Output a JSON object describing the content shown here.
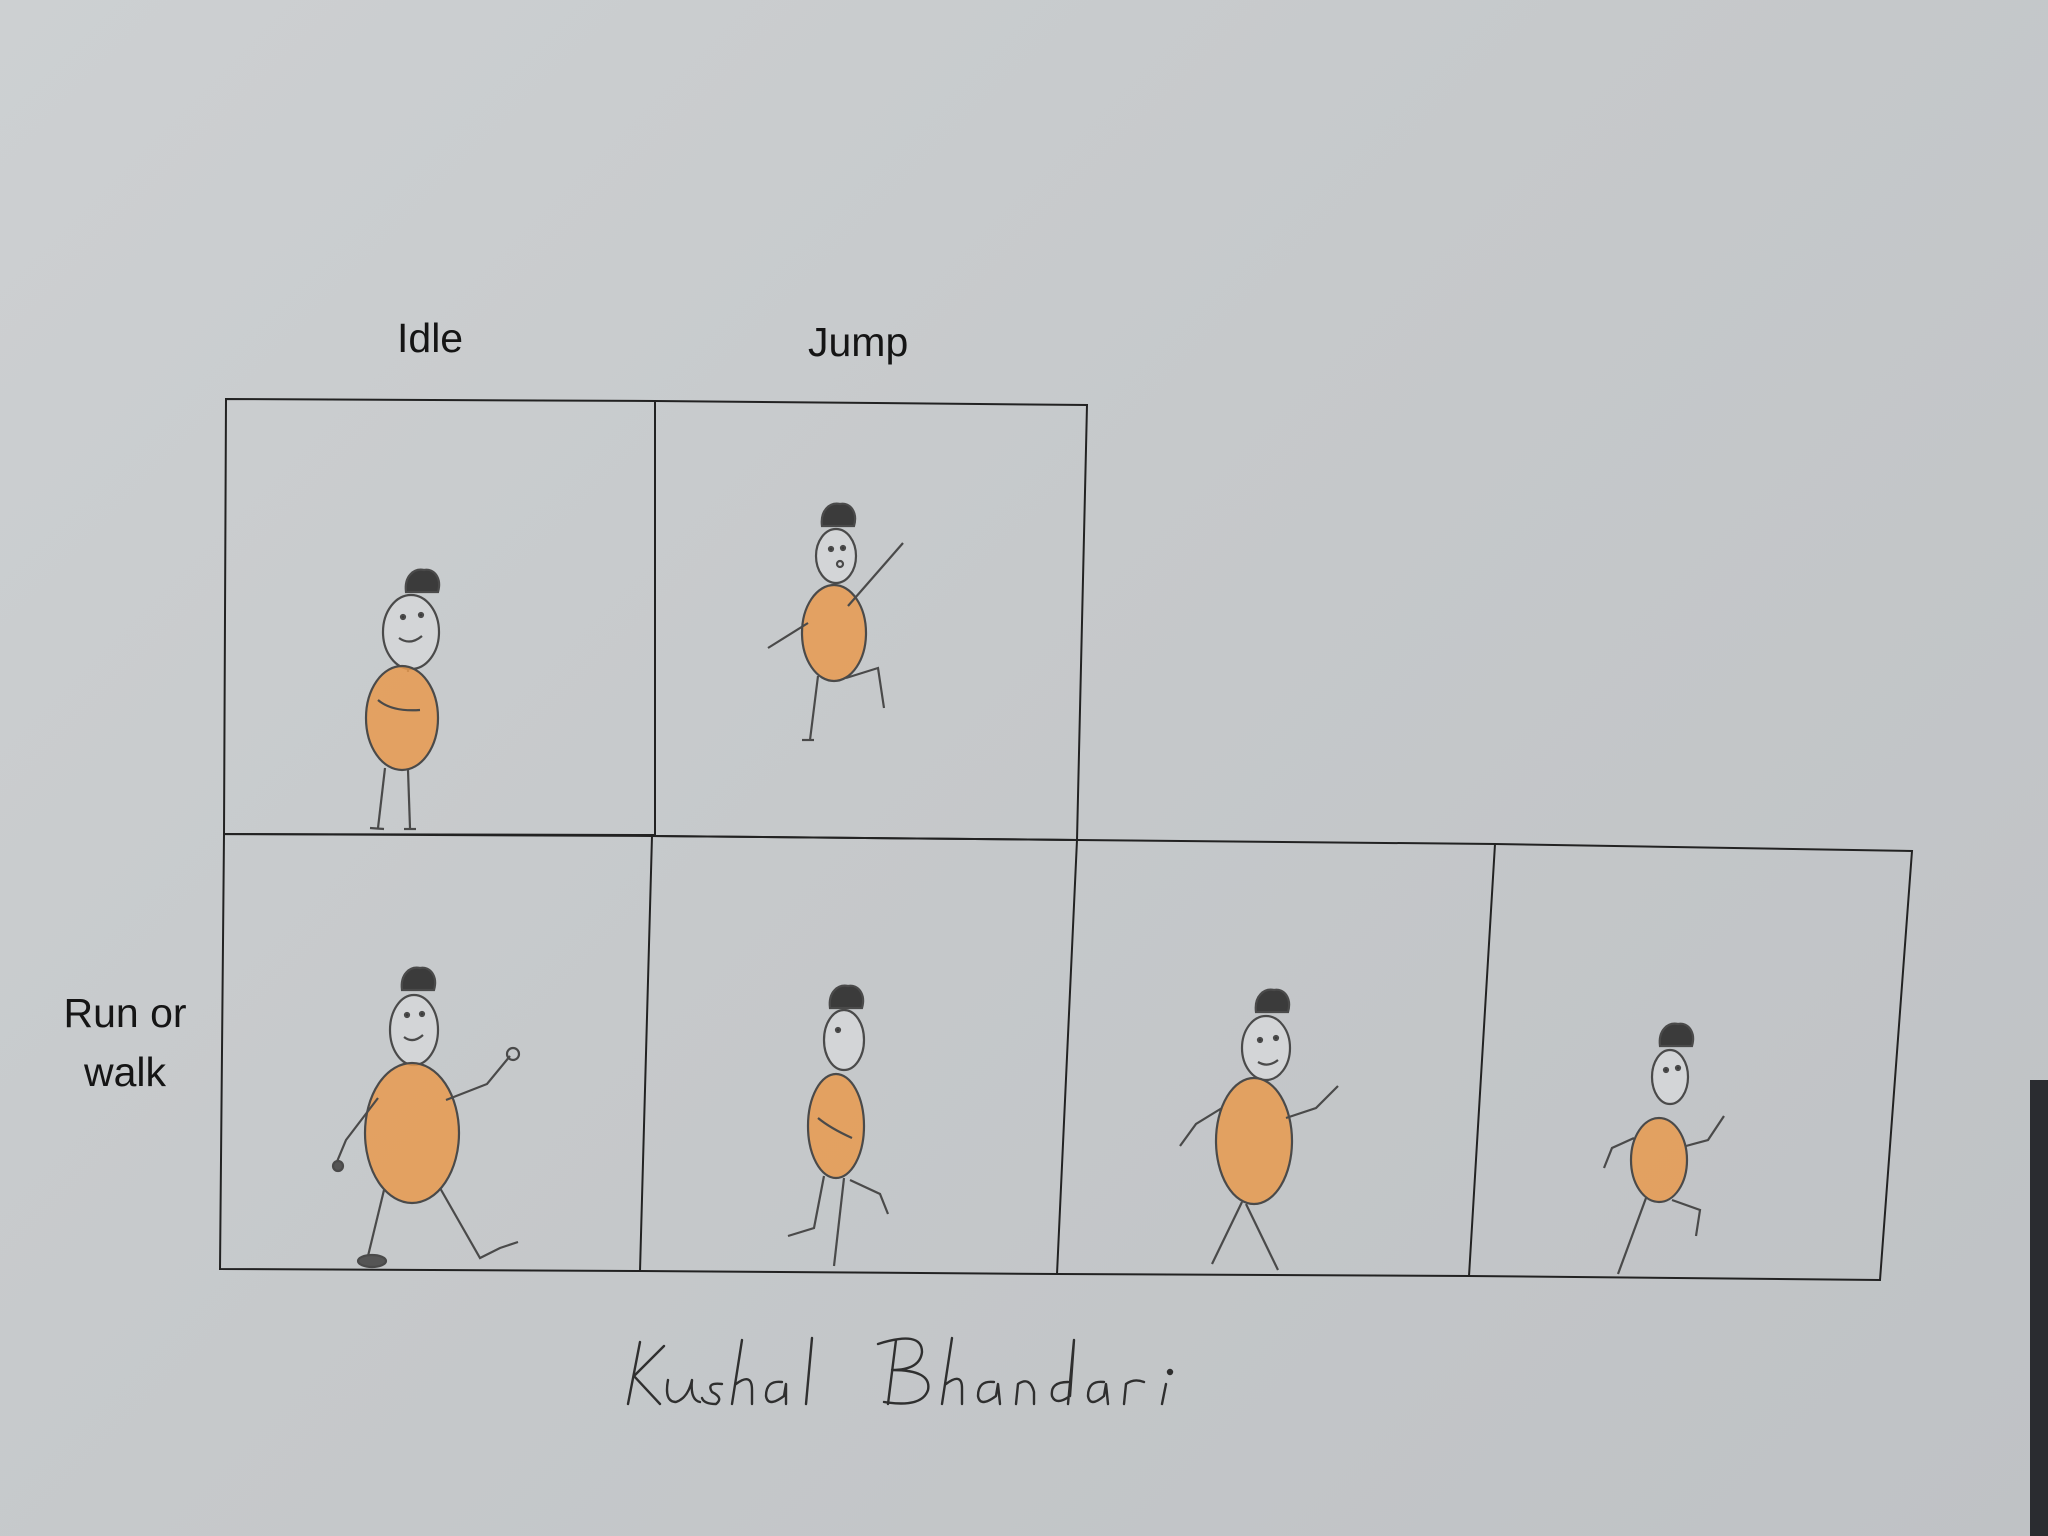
{
  "labels": {
    "idle": "Idle",
    "jump": "Jump",
    "run_line1": "Run or",
    "run_line2": "walk"
  },
  "signature": "Kushal Bhandari",
  "colors": {
    "paper": "#c9cbcd",
    "ink": "#222222",
    "pencil": "#4a4a4a",
    "body_fill": "#e79a4f"
  }
}
